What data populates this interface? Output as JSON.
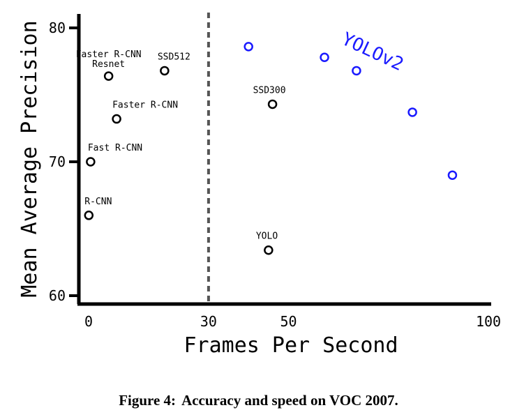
{
  "chart_data": {
    "type": "scatter",
    "xlabel": "Frames Per Second",
    "ylabel": "Mean Average Precision",
    "xlim": [
      0,
      100
    ],
    "ylim": [
      60,
      80
    ],
    "x_ticks": [
      "0",
      "30",
      "50",
      "100"
    ],
    "x_tick_values": [
      0,
      30,
      50,
      100
    ],
    "y_ticks": [
      "60",
      "70",
      "80"
    ],
    "y_tick_values": [
      60,
      70,
      80
    ],
    "reference_line_x": 30,
    "series": [
      {
        "name": "",
        "color": "#000000",
        "points": [
          {
            "label": "R-CNN",
            "x": 0.05,
            "y": 66.0
          },
          {
            "label": "Fast R-CNN",
            "x": 0.5,
            "y": 70.0
          },
          {
            "label": "Faster R-CNN",
            "x": 7,
            "y": 73.2
          },
          {
            "label": "Faster R-CNN Resnet",
            "x": 5,
            "y": 76.4
          },
          {
            "label": "SSD512",
            "x": 19,
            "y": 76.8
          },
          {
            "label": "SSD300",
            "x": 46,
            "y": 74.3
          },
          {
            "label": "YOLO",
            "x": 45,
            "y": 63.4
          }
        ]
      },
      {
        "name": "YOLOv2",
        "color": "#1a1aff",
        "points": [
          {
            "x": 40,
            "y": 78.6
          },
          {
            "x": 59,
            "y": 77.8
          },
          {
            "x": 67,
            "y": 76.8
          },
          {
            "x": 81,
            "y": 73.7
          },
          {
            "x": 91,
            "y": 69.0
          }
        ]
      }
    ]
  },
  "caption": {
    "label": "Figure 4:",
    "text": "Accuracy and speed on VOC 2007."
  }
}
